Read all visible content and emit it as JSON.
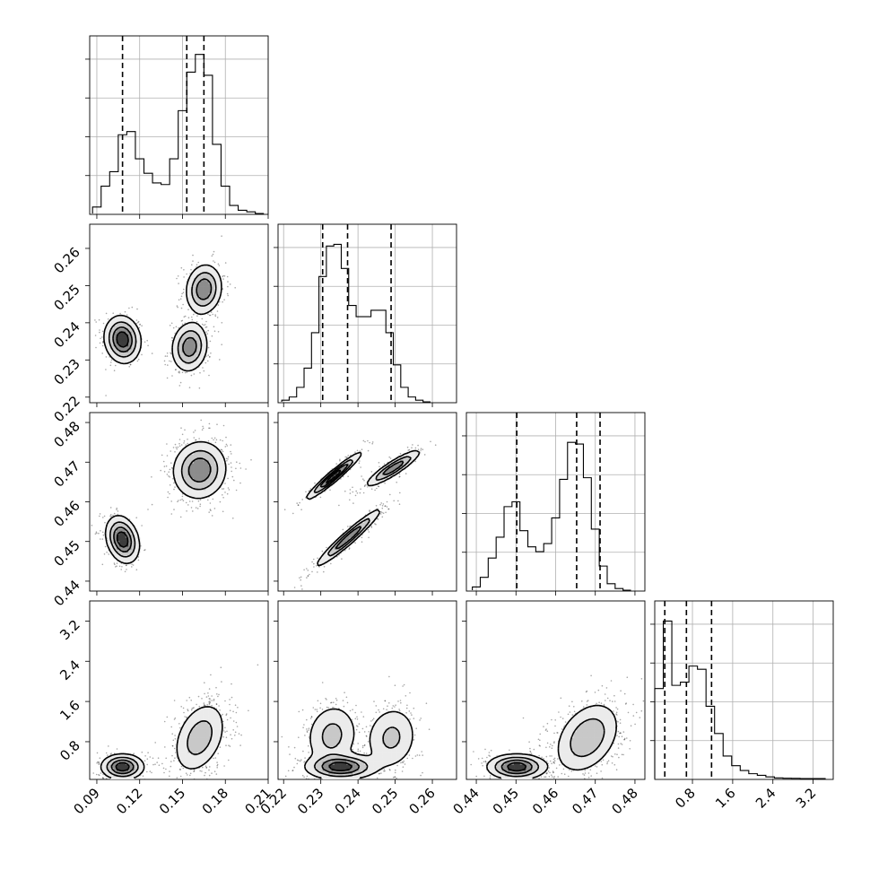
{
  "chart_data": {
    "type": "corner",
    "params": [
      {
        "range": [
          0.085,
          0.21
        ],
        "ticks": [
          0.09,
          0.12,
          0.15,
          0.18,
          0.21
        ],
        "tick_labels": [
          "0.09",
          "0.12",
          "0.15",
          "0.18",
          "0.21"
        ]
      },
      {
        "range": [
          0.2185,
          0.2665
        ],
        "ticks": [
          0.22,
          0.23,
          0.24,
          0.25,
          0.26
        ],
        "tick_labels": [
          "0.22",
          "0.23",
          "0.24",
          "0.25",
          "0.26"
        ]
      },
      {
        "range": [
          0.4375,
          0.4825
        ],
        "ticks": [
          0.44,
          0.45,
          0.46,
          0.47,
          0.48
        ],
        "tick_labels": [
          "0.44",
          "0.45",
          "0.46",
          "0.47",
          "0.48"
        ]
      },
      {
        "range": [
          0.05,
          3.6
        ],
        "ticks": [
          0.8,
          1.6,
          2.4,
          3.2
        ],
        "tick_labels": [
          "0.8",
          "1.6",
          "2.4",
          "3.2"
        ]
      }
    ],
    "marginals": [
      {
        "bins": [
          0.087,
          0.093,
          0.099,
          0.105,
          0.111,
          0.117,
          0.123,
          0.129,
          0.135,
          0.141,
          0.147,
          0.153,
          0.159,
          0.165,
          0.171,
          0.177,
          0.183,
          0.189,
          0.195,
          0.201
        ],
        "counts": [
          0.04,
          0.17,
          0.26,
          0.49,
          0.51,
          0.34,
          0.25,
          0.19,
          0.18,
          0.34,
          0.64,
          0.88,
          0.99,
          0.86,
          0.43,
          0.17,
          0.05,
          0.02,
          0.01,
          0
        ],
        "quantiles": [
          0.108,
          0.153,
          0.165
        ]
      },
      {
        "bins": [
          0.2195,
          0.2215,
          0.2235,
          0.2255,
          0.2275,
          0.2295,
          0.2315,
          0.2335,
          0.2355,
          0.2375,
          0.2395,
          0.2415,
          0.2435,
          0.2455,
          0.2475,
          0.2495,
          0.2515,
          0.2535,
          0.2555,
          0.2575
        ],
        "counts": [
          0.01,
          0.03,
          0.09,
          0.21,
          0.43,
          0.78,
          0.97,
          0.98,
          0.83,
          0.6,
          0.53,
          0.53,
          0.57,
          0.57,
          0.43,
          0.23,
          0.09,
          0.03,
          0.01,
          0
        ],
        "quantiles": [
          0.2305,
          0.2372,
          0.2489
        ]
      },
      {
        "bins": [
          0.439,
          0.441,
          0.443,
          0.445,
          0.447,
          0.449,
          0.451,
          0.453,
          0.455,
          0.457,
          0.459,
          0.461,
          0.463,
          0.465,
          0.467,
          0.469,
          0.471,
          0.473,
          0.475,
          0.477
        ],
        "counts": [
          0.02,
          0.08,
          0.2,
          0.33,
          0.52,
          0.55,
          0.37,
          0.27,
          0.24,
          0.29,
          0.45,
          0.69,
          0.92,
          0.91,
          0.7,
          0.38,
          0.15,
          0.04,
          0.01,
          0
        ],
        "quantiles": [
          0.4502,
          0.4653,
          0.4712
        ]
      },
      {
        "bins": [
          0.05,
          0.22,
          0.39,
          0.56,
          0.73,
          0.9,
          1.07,
          1.24,
          1.41,
          1.58,
          1.75,
          1.92,
          2.09,
          2.26,
          2.43,
          2.6,
          2.77,
          2.94,
          3.11,
          3.28
        ],
        "counts": [
          0.56,
          0.98,
          0.58,
          0.6,
          0.7,
          0.68,
          0.45,
          0.28,
          0.14,
          0.08,
          0.05,
          0.03,
          0.02,
          0.01,
          0.004,
          0.002,
          0.001,
          0,
          0,
          0
        ],
        "quantiles": [
          0.25,
          0.68,
          1.18
        ]
      }
    ],
    "pairs": [
      {
        "x": 0,
        "y": 1,
        "modes": [
          {
            "mx": 0.108,
            "my": 0.2355,
            "sx": 0.006,
            "sy": 0.003,
            "rho": -0.1,
            "w": 0.38
          },
          {
            "mx": 0.155,
            "my": 0.2335,
            "sx": 0.006,
            "sy": 0.0032,
            "rho": 0.1,
            "w": 0.3
          },
          {
            "mx": 0.165,
            "my": 0.249,
            "sx": 0.006,
            "sy": 0.0032,
            "rho": 0.1,
            "w": 0.32
          }
        ]
      },
      {
        "x": 0,
        "y": 2,
        "modes": [
          {
            "mx": 0.108,
            "my": 0.4505,
            "sx": 0.0055,
            "sy": 0.0028,
            "rho": -0.25,
            "w": 0.38
          },
          {
            "mx": 0.162,
            "my": 0.468,
            "sx": 0.009,
            "sy": 0.0035,
            "rho": 0.05,
            "w": 0.62
          }
        ]
      },
      {
        "x": 0,
        "y": 3,
        "modes": [
          {
            "mx": 0.108,
            "my": 0.3,
            "sx": 0.007,
            "sy": 0.12,
            "rho": 0.0,
            "w": 0.38
          },
          {
            "mx": 0.162,
            "my": 0.88,
            "sx": 0.009,
            "sy": 0.35,
            "rho": 0.35,
            "w": 0.62
          }
        ]
      },
      {
        "x": 1,
        "y": 2,
        "modes": [
          {
            "mx": 0.2335,
            "my": 0.4665,
            "sx": 0.0035,
            "sy": 0.0028,
            "rho": 0.96,
            "w": 0.32
          },
          {
            "mx": 0.2495,
            "my": 0.4685,
            "sx": 0.0035,
            "sy": 0.0022,
            "rho": 0.9,
            "w": 0.3
          },
          {
            "mx": 0.2375,
            "my": 0.451,
            "sx": 0.0042,
            "sy": 0.0035,
            "rho": 0.96,
            "w": 0.38
          }
        ]
      },
      {
        "x": 1,
        "y": 3,
        "modes": [
          {
            "mx": 0.2355,
            "my": 0.3,
            "sx": 0.0045,
            "sy": 0.12,
            "rho": 0.0,
            "w": 0.38
          },
          {
            "mx": 0.233,
            "my": 0.92,
            "sx": 0.0035,
            "sy": 0.32,
            "rho": 0.1,
            "w": 0.32
          },
          {
            "mx": 0.249,
            "my": 0.88,
            "sx": 0.0035,
            "sy": 0.32,
            "rho": 0.1,
            "w": 0.3
          }
        ]
      },
      {
        "x": 2,
        "y": 3,
        "modes": [
          {
            "mx": 0.4502,
            "my": 0.3,
            "sx": 0.0035,
            "sy": 0.12,
            "rho": 0.0,
            "w": 0.38
          },
          {
            "mx": 0.468,
            "my": 0.88,
            "sx": 0.004,
            "sy": 0.35,
            "rho": 0.35,
            "w": 0.62
          }
        ]
      }
    ]
  }
}
